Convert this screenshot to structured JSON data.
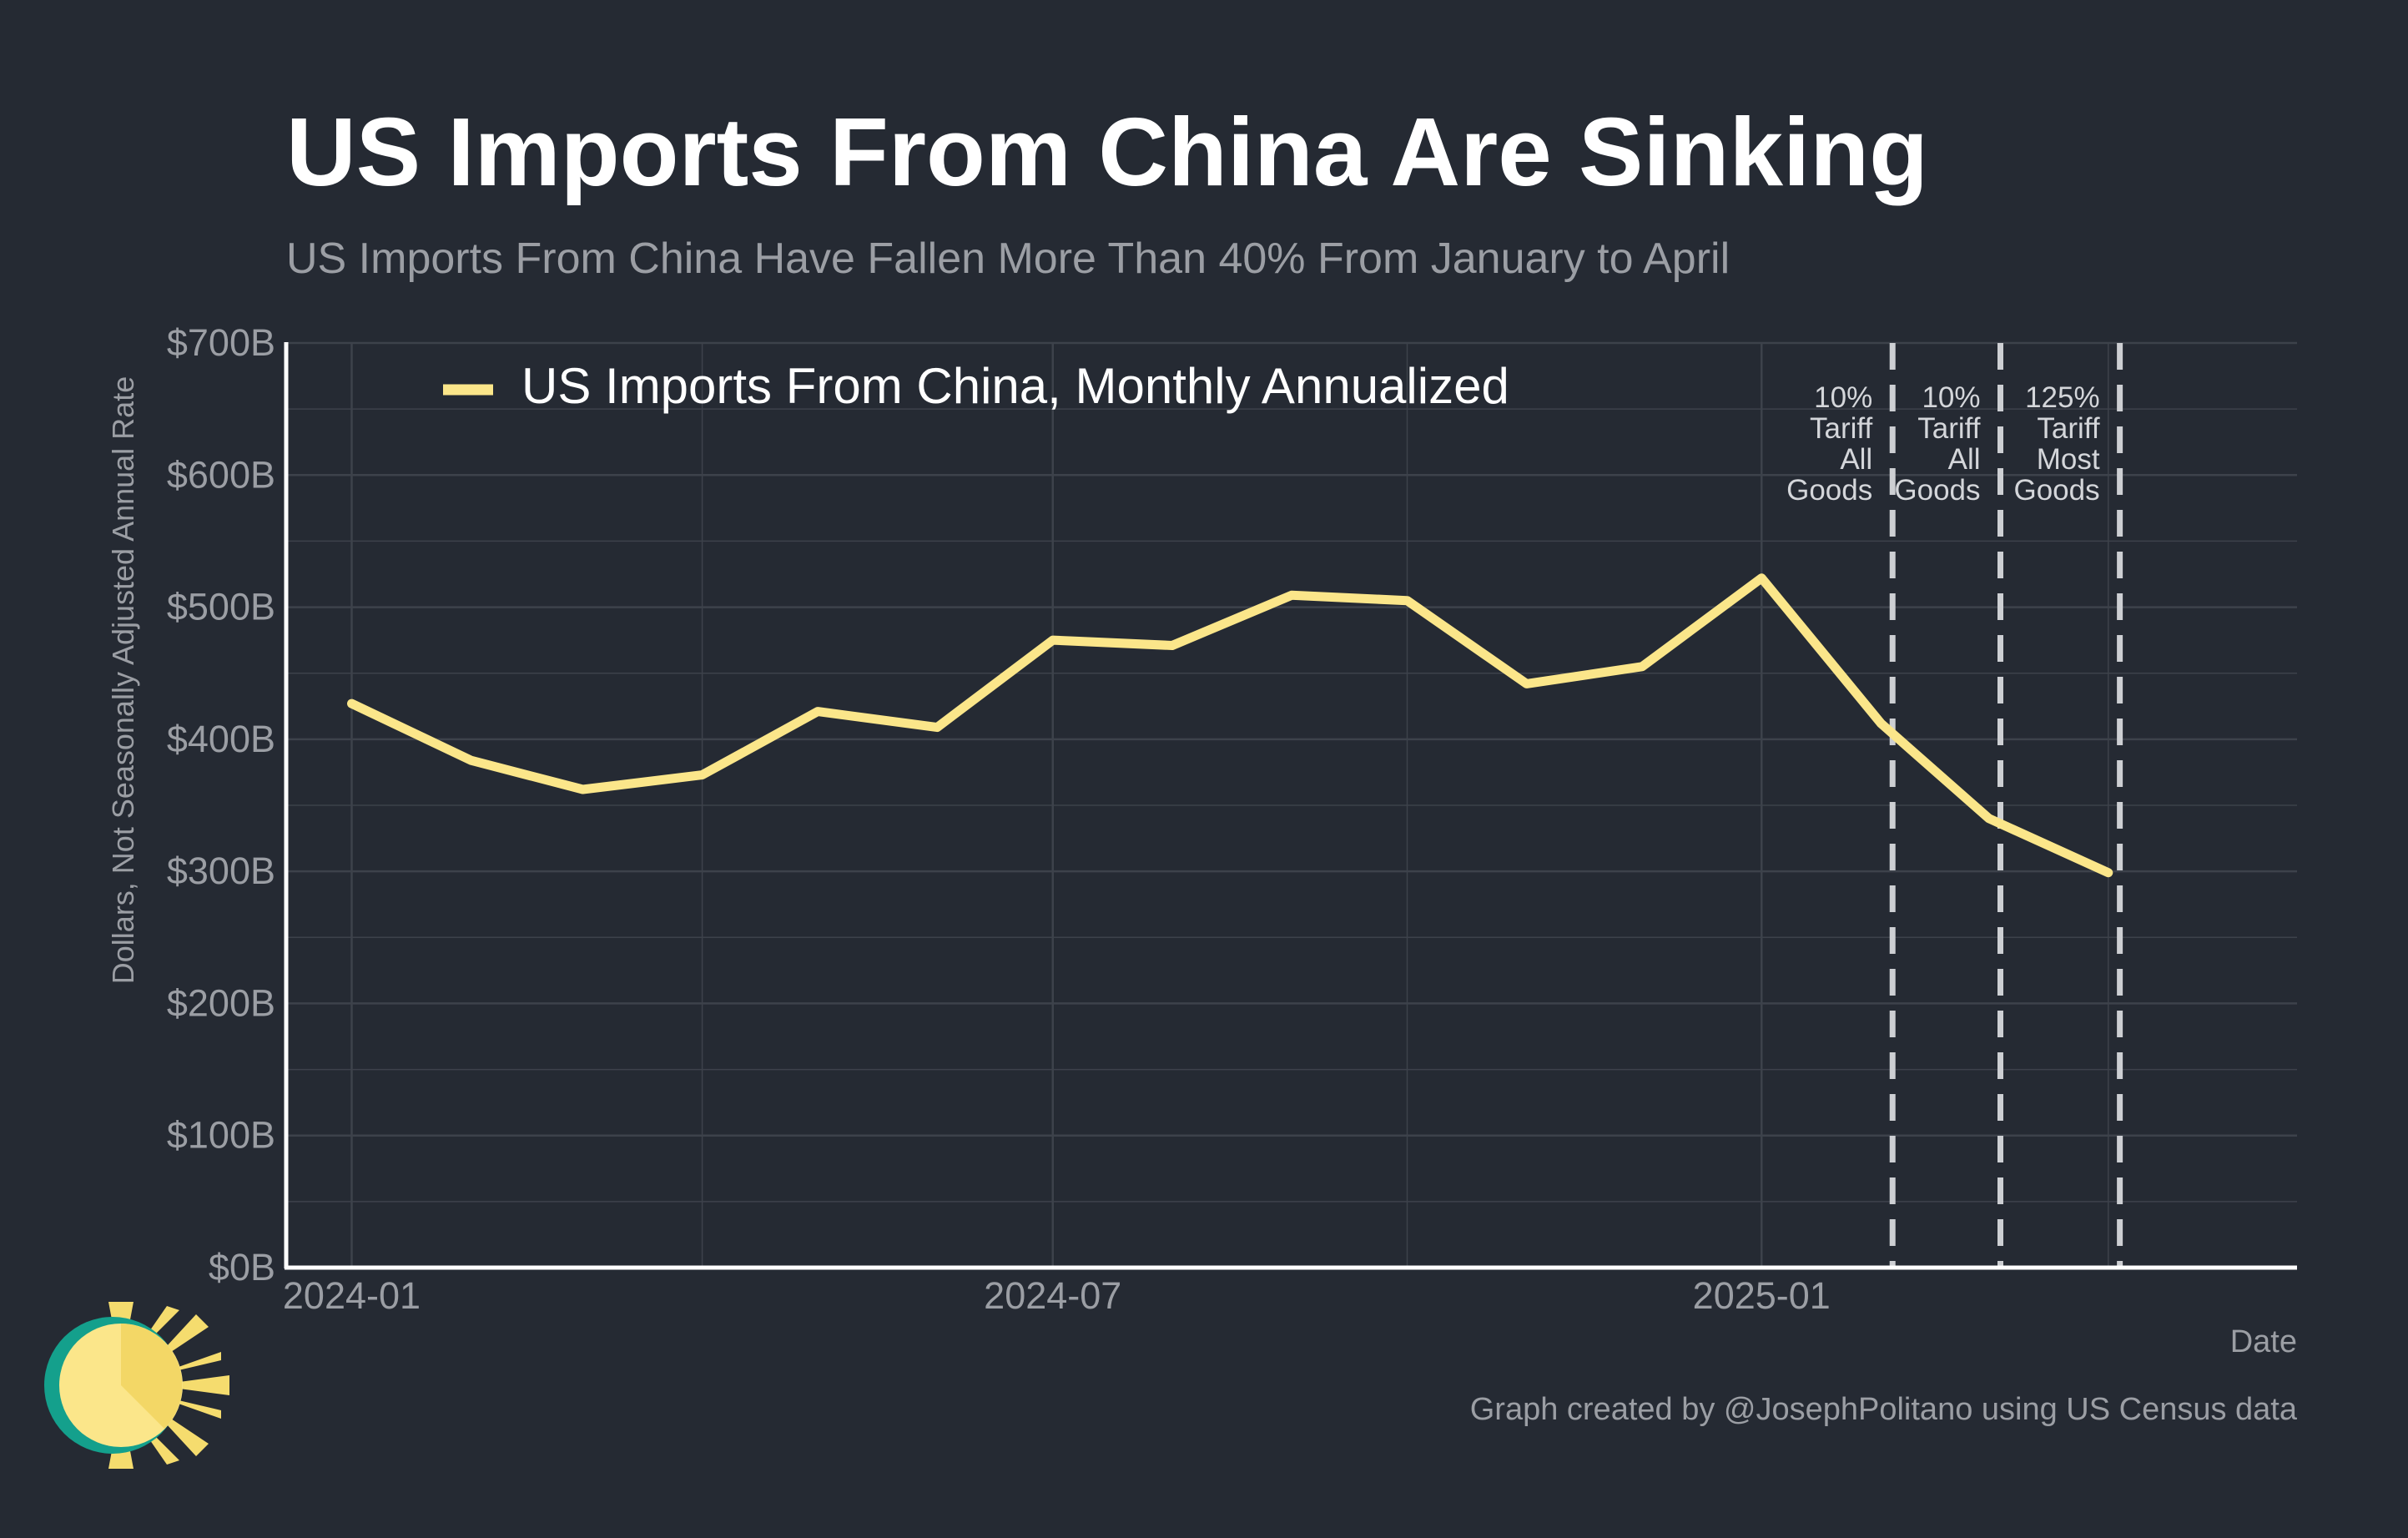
{
  "colors": {
    "background": "#252a33",
    "line": "#fbe68a",
    "grid": "#3d424b",
    "axis": "#ffffff",
    "muted_text": "#9b9ea4",
    "vline": "#cdcfd3"
  },
  "chart_data": {
    "type": "line",
    "title": "US Imports From China Are Sinking",
    "subtitle": "US Imports From China Have Fallen More Than 40% From January to April",
    "xlabel": "Date",
    "ylabel": "Dollars, Not Seasonally Adjusted Annual Rate",
    "ylim": [
      0,
      700
    ],
    "yticks": [
      0,
      100,
      200,
      300,
      400,
      500,
      600,
      700
    ],
    "ytick_labels": [
      "$0B",
      "$100B",
      "$200B",
      "$300B",
      "$400B",
      "$500B",
      "$600B",
      "$700B"
    ],
    "xlim": [
      "2023-12-15",
      "2025-05-20"
    ],
    "xticks": [
      "2024-01-01",
      "2024-07-01",
      "2025-01-01"
    ],
    "xtick_labels": [
      "2024-01",
      "2024-07",
      "2025-01"
    ],
    "grid": true,
    "legend_position": "top-left",
    "series": [
      {
        "name": "US Imports From China, Monthly Annualized",
        "x": [
          "2024-01-01",
          "2024-02-01",
          "2024-03-01",
          "2024-04-01",
          "2024-05-01",
          "2024-06-01",
          "2024-07-01",
          "2024-08-01",
          "2024-09-01",
          "2024-10-01",
          "2024-11-01",
          "2024-12-01",
          "2025-01-01",
          "2025-02-01",
          "2025-03-01",
          "2025-04-01"
        ],
        "values": [
          427,
          384,
          362,
          373,
          421,
          409,
          475,
          471,
          509,
          505,
          442,
          455,
          522,
          412,
          340,
          299
        ]
      }
    ],
    "annotations": [
      {
        "date": "2025-02-04",
        "lines": [
          "10%",
          "Tariff",
          "All",
          "Goods"
        ]
      },
      {
        "date": "2025-03-04",
        "lines": [
          "10%",
          "Tariff",
          "All",
          "Goods"
        ]
      },
      {
        "date": "2025-04-04",
        "lines": [
          "125%",
          "Tariff",
          "Most",
          "Goods"
        ]
      }
    ],
    "credit": "Graph created by @JosephPolitano using US Census data"
  }
}
